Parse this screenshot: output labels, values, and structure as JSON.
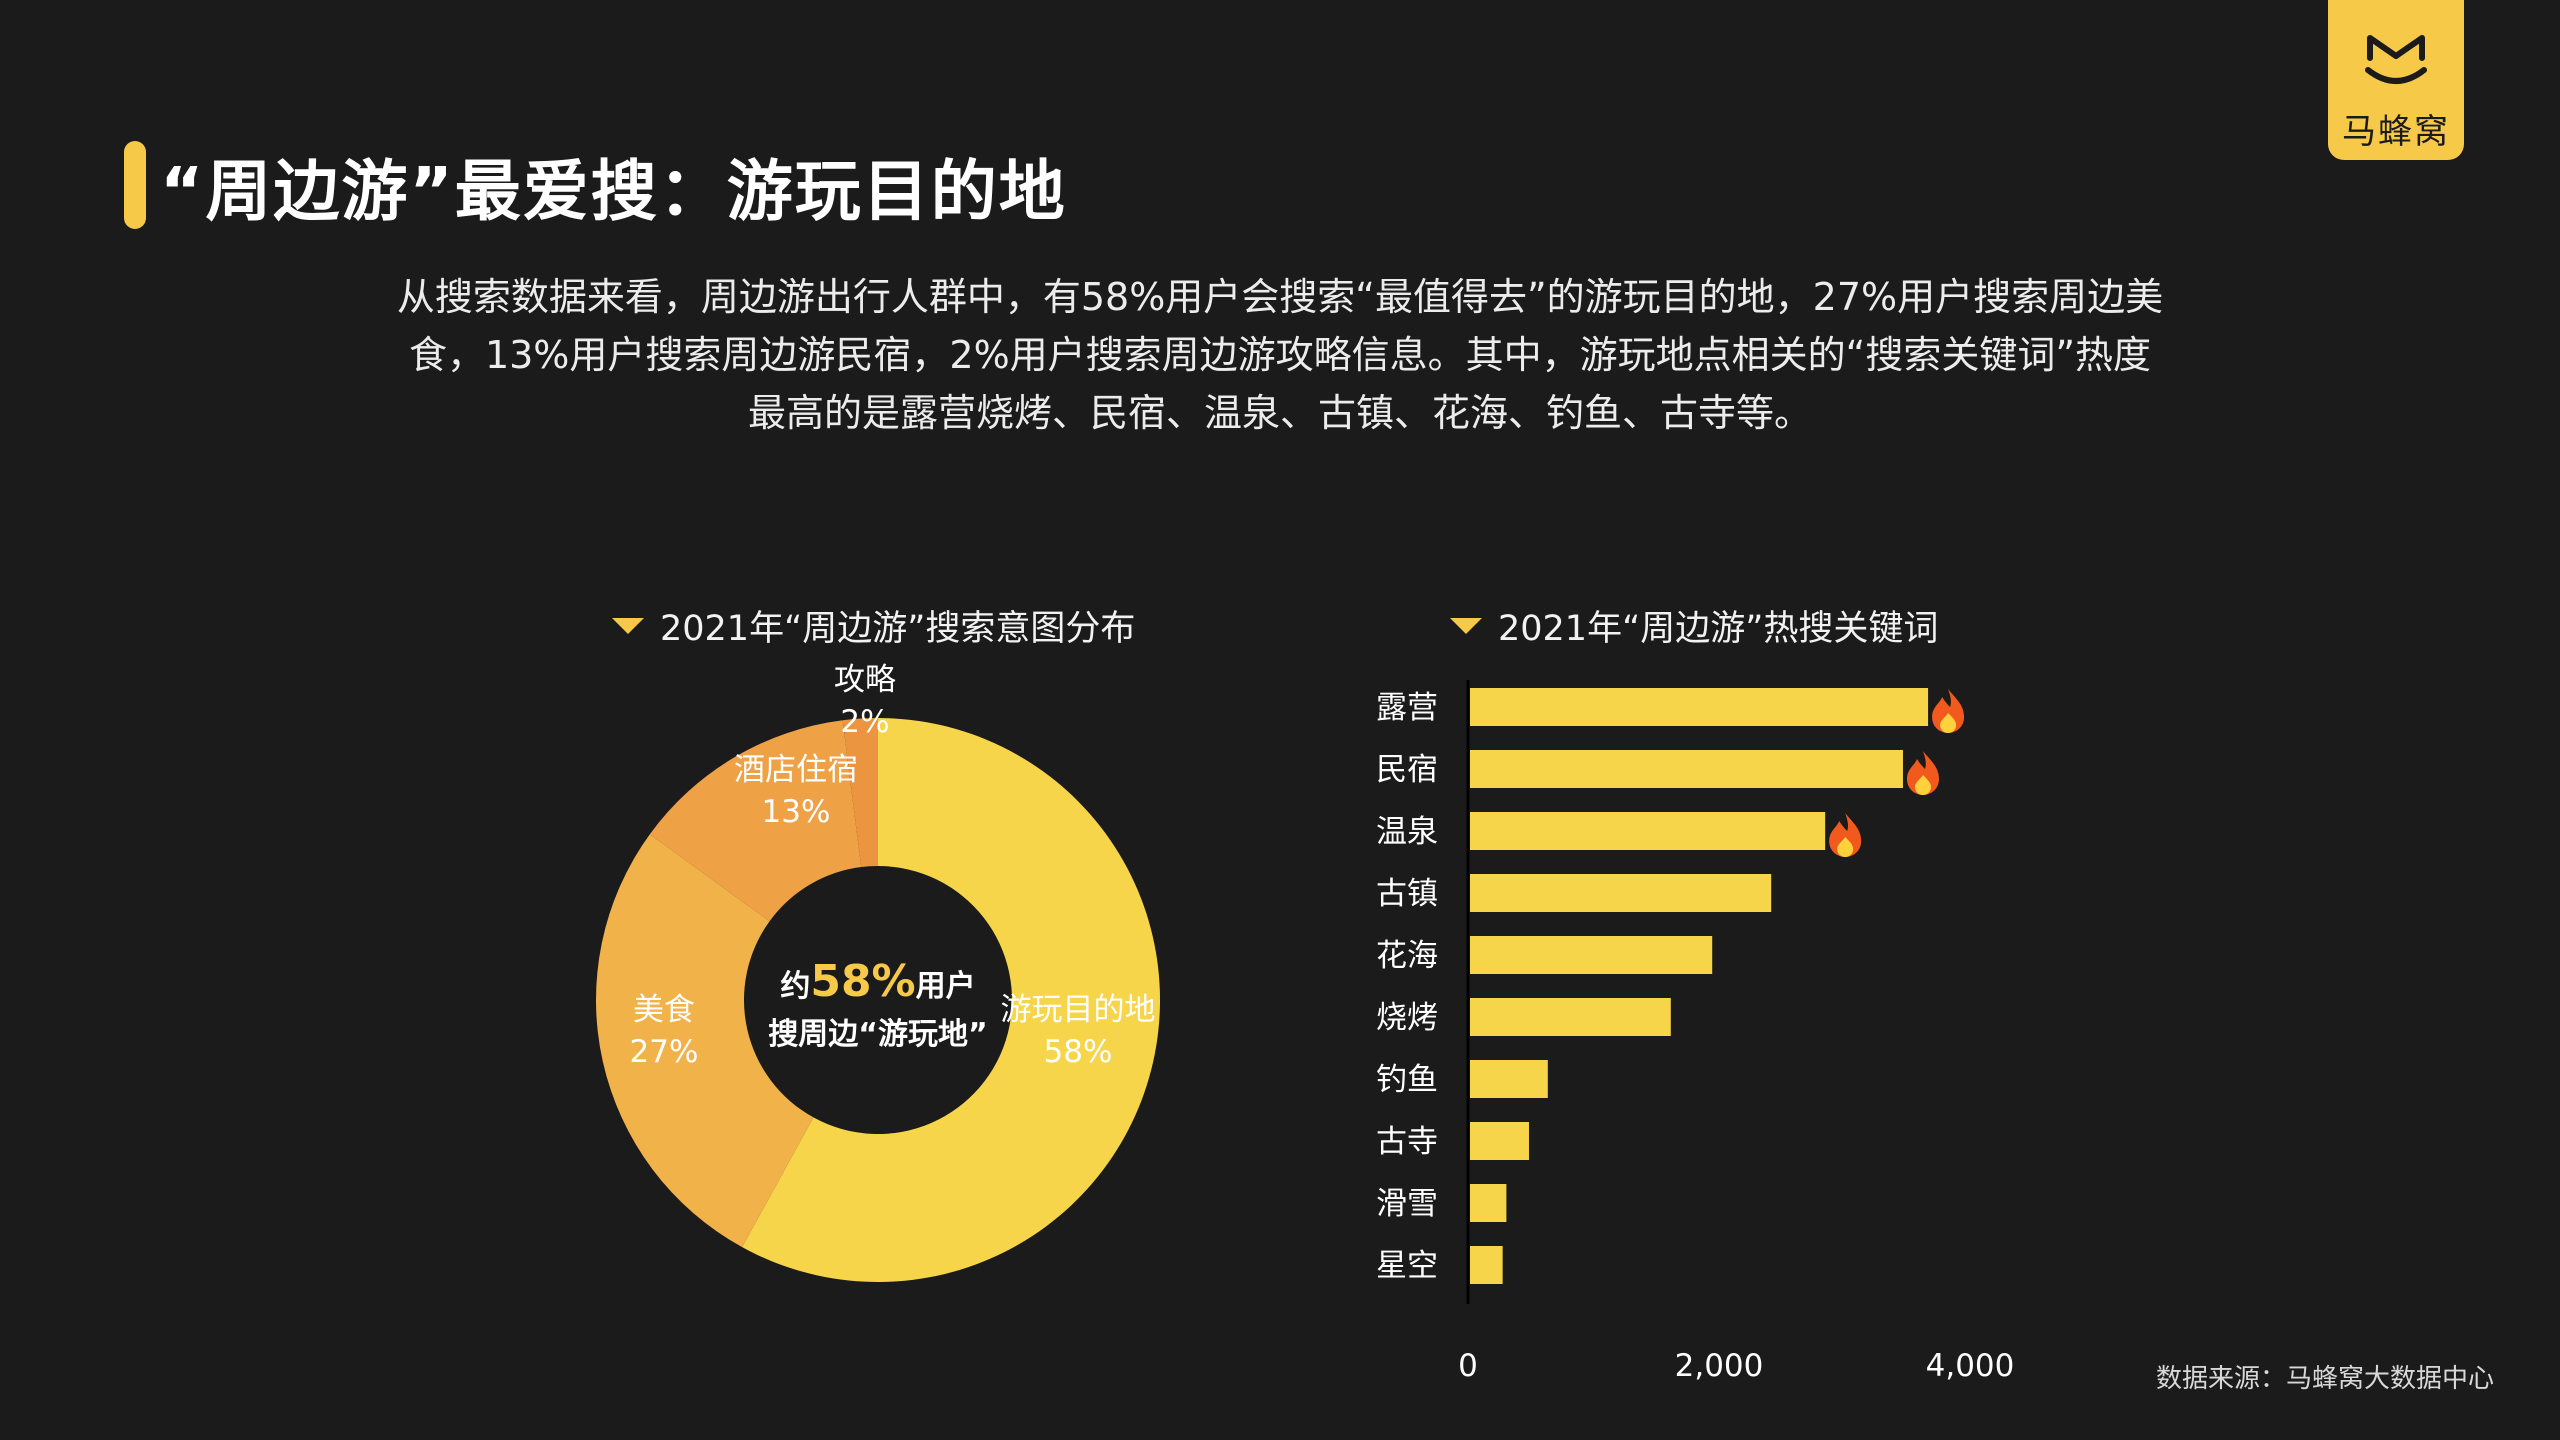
{
  "page": {
    "title": "“周边游”最爱搜：游玩目的地",
    "intro_lines": [
      "从搜索数据来看，周边游出行人群中，有58%用户会搜索“最值得去”的游玩目的地，27%用户搜索周边美",
      "食，13%用户搜索周边游民宿，2%用户搜索周边游攻略信息。其中，游玩地点相关的“搜索关键词”热度",
      "最高的是露营烧烤、民宿、温泉、古镇、花海、钓鱼、古寺等。"
    ],
    "source": "数据来源：马蜂窝大数据中心"
  },
  "logo": {
    "text": "马蜂窝"
  },
  "colors": {
    "background": "#1b1b1b",
    "accent": "#f7c948",
    "bar": "#f7d54a",
    "slice_main": "#f7d54a",
    "slice_food": "#f2b24a",
    "slice_hotel": "#eea145",
    "slice_guide": "#eb9540"
  },
  "donut_center": {
    "prefix": "约",
    "value": "58%",
    "suffix": "用户",
    "line2": "搜周边“游玩地”"
  },
  "chart_data": [
    {
      "type": "pie",
      "title": "2021年“周边游”搜索意图分布",
      "categories": [
        "游玩目的地",
        "美食",
        "酒店住宿",
        "攻略"
      ],
      "values": [
        58,
        27,
        13,
        2
      ],
      "labels": [
        "58%",
        "27%",
        "13%",
        "2%"
      ],
      "legend": "none"
    },
    {
      "type": "bar",
      "orientation": "horizontal",
      "title": "2021年“周边游”热搜关键词",
      "categories": [
        "露营",
        "民宿",
        "温泉",
        "古镇",
        "花海",
        "烧烤",
        "钓鱼",
        "古寺",
        "滑雪",
        "星空"
      ],
      "values": [
        3650,
        3450,
        2830,
        2400,
        1930,
        1600,
        620,
        470,
        290,
        260
      ],
      "hot": [
        true,
        true,
        true,
        false,
        false,
        false,
        false,
        false,
        false,
        false
      ],
      "xlim": [
        0,
        4400
      ],
      "xticks": [
        0,
        2000,
        4000
      ],
      "xtick_labels": [
        "0",
        "2,000",
        "4,000"
      ],
      "grid": false
    }
  ]
}
